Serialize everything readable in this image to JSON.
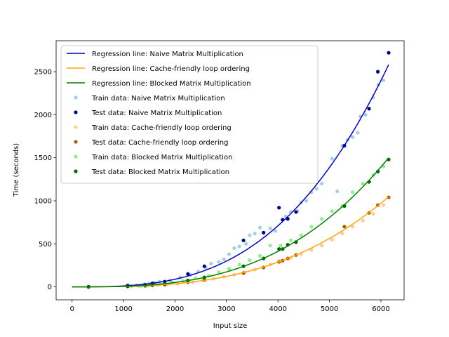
{
  "chart_data": {
    "type": "scatter",
    "title": "",
    "xlabel": "Input size",
    "ylabel": "Time (seconds)",
    "xlim": [
      -310,
      6450
    ],
    "ylim": [
      -150,
      2860
    ],
    "xticks": [
      0,
      1000,
      2000,
      3000,
      4000,
      5000,
      6000
    ],
    "yticks": [
      0,
      500,
      1000,
      1500,
      2000,
      2500
    ],
    "grid": false,
    "legend_position": "upper-left",
    "series": [
      {
        "name": "Regression line: Naive Matrix Multiplication",
        "kind": "line",
        "color": "#0000cc",
        "coef": [
          0,
          0,
          0,
          1.11e-08
        ],
        "x_range": [
          0,
          6150
        ]
      },
      {
        "name": "Regression line: Cache-friendly loop ordering",
        "kind": "line",
        "color": "#ffa500",
        "coef": [
          0,
          0,
          0,
          4.5e-09
        ],
        "x_range": [
          0,
          6150
        ]
      },
      {
        "name": "Regression line: Blocked Matrix Multiplication",
        "kind": "line",
        "color": "#008000",
        "coef": [
          0,
          0,
          0,
          6.45e-09
        ],
        "x_range": [
          0,
          6150
        ]
      },
      {
        "name": "Train data: Naive Matrix Multiplication",
        "kind": "scatter",
        "color": "#a6cee3",
        "x": [
          1100,
          1250,
          1400,
          1500,
          1600,
          1700,
          1900,
          2100,
          2300,
          2450,
          2600,
          2700,
          2850,
          2950,
          3050,
          3150,
          3250,
          3380,
          3450,
          3550,
          3650,
          3850,
          3950,
          4150,
          4250,
          4380,
          4450,
          4550,
          4650,
          4750,
          4850,
          5050,
          5150,
          5250,
          5350,
          5450,
          5550,
          5600,
          5700,
          5850,
          5950,
          6050
        ],
        "y": [
          15,
          20,
          30,
          40,
          50,
          60,
          75,
          110,
          140,
          180,
          220,
          270,
          290,
          320,
          380,
          450,
          470,
          500,
          600,
          620,
          690,
          680,
          650,
          820,
          870,
          880,
          980,
          1000,
          1100,
          1140,
          1200,
          1490,
          1110,
          1640,
          1710,
          1740,
          1790,
          1980,
          2000,
          2200,
          2350,
          2400
        ]
      },
      {
        "name": "Test data:  Naive Matrix Multiplication",
        "kind": "scatter",
        "color": "#00008b",
        "x": [
          320,
          1080,
          1420,
          1560,
          1800,
          2250,
          2570,
          3330,
          3720,
          4020,
          4090,
          4190,
          4350,
          5290,
          5770,
          5940,
          6150
        ],
        "y": [
          2,
          15,
          25,
          40,
          60,
          150,
          240,
          540,
          630,
          920,
          780,
          790,
          870,
          1640,
          2070,
          2500,
          2720
        ]
      },
      {
        "name": "Train data: Cache-friendly loop ordering",
        "kind": "scatter",
        "color": "#ffcc99",
        "x": [
          1150,
          1300,
          1450,
          1650,
          1850,
          2050,
          2350,
          2550,
          2750,
          2950,
          3150,
          3350,
          3550,
          3850,
          4050,
          4250,
          4450,
          4650,
          4850,
          5050,
          5250,
          5450,
          5650,
          5850,
          6050
        ],
        "y": [
          5,
          10,
          12,
          20,
          25,
          35,
          55,
          80,
          95,
          120,
          140,
          170,
          200,
          260,
          300,
          340,
          380,
          430,
          480,
          550,
          620,
          700,
          770,
          850,
          950
        ]
      },
      {
        "name": "Test data:  Cache-friendly loop ordering",
        "kind": "scatter",
        "color": "#b35900",
        "x": [
          320,
          1080,
          1420,
          1560,
          1800,
          2250,
          2570,
          3330,
          3720,
          4020,
          4090,
          4190,
          4350,
          5290,
          5770,
          5940,
          6150
        ],
        "y": [
          0,
          5,
          12,
          17,
          25,
          55,
          80,
          160,
          225,
          290,
          305,
          330,
          370,
          700,
          860,
          950,
          1040
        ]
      },
      {
        "name": "Train data: Blocked Matrix Multiplication",
        "kind": "scatter",
        "color": "#90ee90",
        "x": [
          1150,
          1350,
          1500,
          1700,
          1950,
          2150,
          2400,
          2650,
          2850,
          3050,
          3250,
          3450,
          3650,
          3850,
          4050,
          4250,
          4450,
          4650,
          4850,
          5050,
          5250,
          5450,
          5650,
          5850,
          6050
        ],
        "y": [
          8,
          12,
          18,
          30,
          50,
          70,
          100,
          130,
          170,
          210,
          260,
          310,
          360,
          480,
          480,
          540,
          600,
          700,
          790,
          880,
          940,
          1100,
          1200,
          1300,
          1400
        ]
      },
      {
        "name": "Test data:  Blocked Matrix Multiplication",
        "kind": "scatter",
        "color": "#006400",
        "x": [
          320,
          1080,
          1420,
          1560,
          1800,
          2250,
          2570,
          3330,
          3720,
          4020,
          4090,
          4190,
          4350,
          5290,
          5770,
          5940,
          6150
        ],
        "y": [
          0,
          8,
          20,
          25,
          35,
          75,
          110,
          240,
          330,
          440,
          440,
          490,
          520,
          940,
          1220,
          1340,
          1480
        ]
      }
    ]
  }
}
